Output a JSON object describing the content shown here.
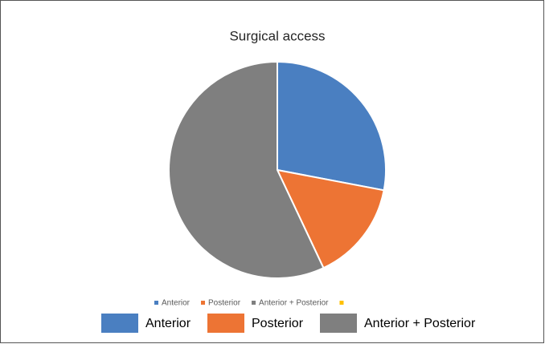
{
  "chart_data": {
    "type": "pie",
    "title": "Surgical access",
    "categories": [
      "Anterior",
      "Posterior",
      "Anterior + Posterior",
      null
    ],
    "values": [
      28,
      15,
      57,
      0
    ],
    "colors": [
      "#4a7fc1",
      "#ed7434",
      "#7f7f7f",
      "#ffc000"
    ],
    "legend": "bottom"
  }
}
